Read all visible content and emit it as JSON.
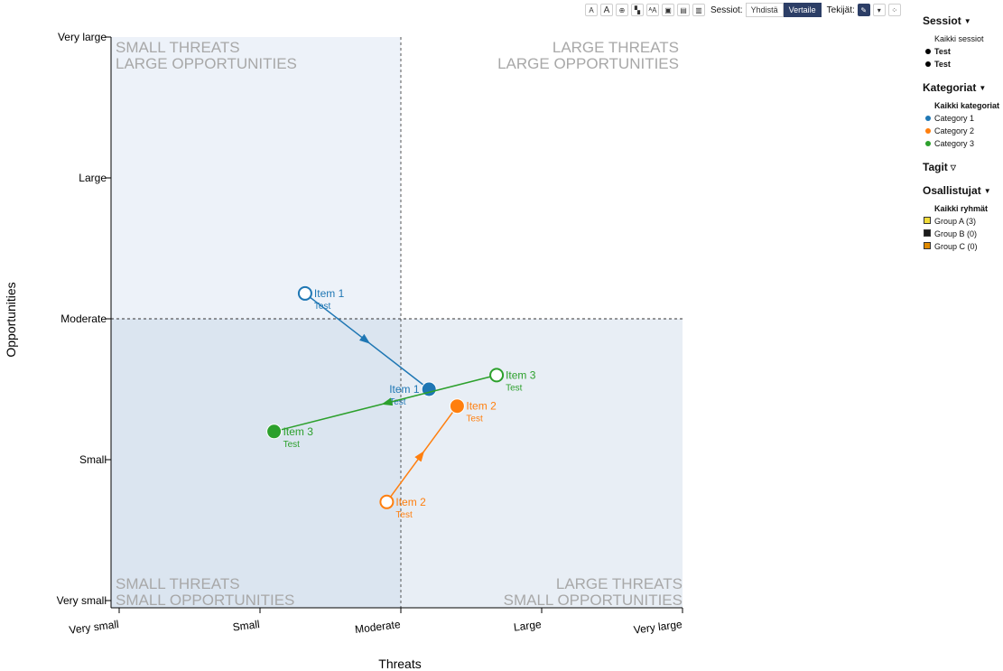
{
  "toolbar": {
    "icons": [
      "small-text-icon",
      "large-text-icon",
      "zoom-icon",
      "layout-icon",
      "label-icon",
      "export-icon",
      "save-icon",
      "print-icon"
    ],
    "sessions_label": "Sessiot:",
    "merge_label": "Yhdistä",
    "compare_label": "Vertaile",
    "authors_label": "Tekijät:"
  },
  "sidebar": {
    "sessions": {
      "title": "Sessiot",
      "all": "Kaikki sessiot",
      "items": [
        "Test",
        "Test"
      ]
    },
    "categories": {
      "title": "Kategoriat",
      "all": "Kaikki kategoriat",
      "items": [
        {
          "label": "Category 1",
          "color": "#1f77b4"
        },
        {
          "label": "Category 2",
          "color": "#ff7f0e"
        },
        {
          "label": "Category 3",
          "color": "#2ca02c"
        }
      ]
    },
    "tags": {
      "title": "Tagit"
    },
    "participants": {
      "title": "Osallistujat",
      "all": "Kaikki ryhmät",
      "items": [
        {
          "label": "Group A (3)",
          "color": "#f2dc3a"
        },
        {
          "label": "Group B (0)",
          "color": "#1a1a1a"
        },
        {
          "label": "Group C (0)",
          "color": "#e08a00"
        }
      ]
    }
  },
  "chart_data": {
    "type": "scatter",
    "xlabel": "Threats",
    "ylabel": "Opportunities",
    "x_ticks": [
      "Very small",
      "Small",
      "Moderate",
      "Large",
      "Very large"
    ],
    "y_ticks": [
      "Very small",
      "Small",
      "Moderate",
      "Large",
      "Very large"
    ],
    "xlim": [
      1,
      5
    ],
    "ylim": [
      1,
      5
    ],
    "divider": {
      "x": 3,
      "y": 3
    },
    "quadrants": {
      "top_left": [
        "SMALL THREATS",
        "LARGE OPPORTUNITIES"
      ],
      "top_right": [
        "LARGE THREATS",
        "LARGE OPPORTUNITIES"
      ],
      "bottom_left": [
        "SMALL THREATS",
        "SMALL OPPORTUNITIES"
      ],
      "bottom_right": [
        "LARGE THREATS",
        "SMALL OPPORTUNITIES"
      ]
    },
    "items": [
      {
        "name": "Item 1",
        "session": "Test",
        "color": "#1f77b4",
        "from": {
          "x": 2.32,
          "y": 3.18
        },
        "to": {
          "x": 3.2,
          "y": 2.5
        }
      },
      {
        "name": "Item 2",
        "session": "Test",
        "color": "#ff7f0e",
        "from": {
          "x": 2.9,
          "y": 1.7
        },
        "to": {
          "x": 3.4,
          "y": 2.38
        }
      },
      {
        "name": "Item 3",
        "session": "Test",
        "color": "#2ca02c",
        "from": {
          "x": 3.68,
          "y": 2.6
        },
        "to": {
          "x": 2.1,
          "y": 2.2
        }
      }
    ]
  }
}
